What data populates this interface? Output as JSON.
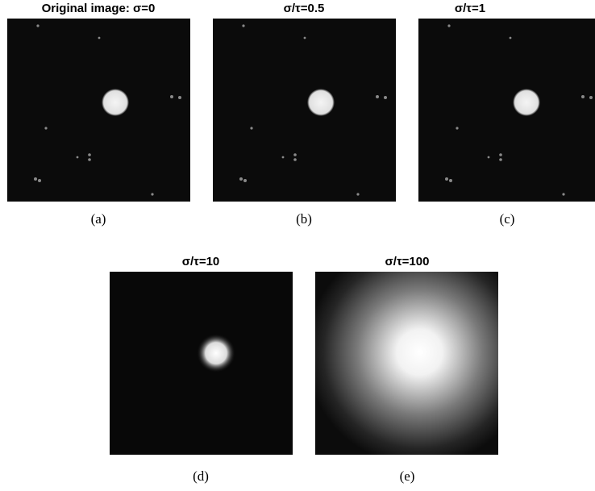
{
  "panels": [
    {
      "title": "Original image: σ=0",
      "caption": "(a)"
    },
    {
      "title": "σ/τ=0.5",
      "caption": "(b)"
    },
    {
      "title": "σ/τ=1",
      "caption": "(c)"
    },
    {
      "title": "σ/τ=10",
      "caption": "(d)"
    },
    {
      "title": "σ/τ=100",
      "caption": "(e)"
    }
  ]
}
